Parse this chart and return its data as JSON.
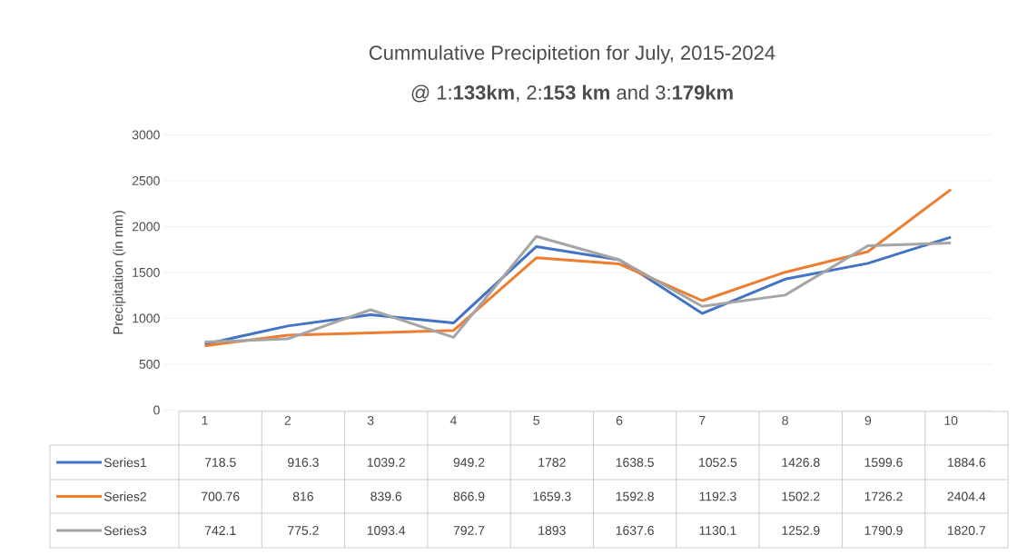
{
  "chart_data": {
    "type": "line",
    "title": "Cummulative Precipitetion for July, 2015-2024",
    "subtitle": "@ 1:**133km**, 2:**153 km** and 3:**179km**",
    "ylabel": "Precipitation (in mm)",
    "categories": [
      "1",
      "2",
      "3",
      "4",
      "5",
      "6",
      "7",
      "8",
      "9",
      "10"
    ],
    "series": [
      {
        "name": "Series1",
        "color": "#4472c4",
        "values": [
          718.5,
          916.3,
          1039.2,
          949.2,
          1782,
          1638.5,
          1052.5,
          1426.8,
          1599.6,
          1884.6
        ]
      },
      {
        "name": "Series2",
        "color": "#ed7d31",
        "values": [
          700.76,
          816,
          839.6,
          866.9,
          1659.3,
          1592.8,
          1192.3,
          1502.2,
          1726.2,
          2404.4
        ]
      },
      {
        "name": "Series3",
        "color": "#a5a5a5",
        "values": [
          742.1,
          775.2,
          1093.4,
          792.7,
          1893,
          1637.6,
          1130.1,
          1252.9,
          1790.9,
          1820.7
        ]
      }
    ],
    "ylim": [
      0,
      3000
    ],
    "yticks": [
      0,
      500,
      1000,
      1500,
      2000,
      2500,
      3000
    ],
    "grid": "y",
    "legend": "bottom",
    "data_labels": true,
    "marker": "none",
    "line_style": "solid"
  }
}
